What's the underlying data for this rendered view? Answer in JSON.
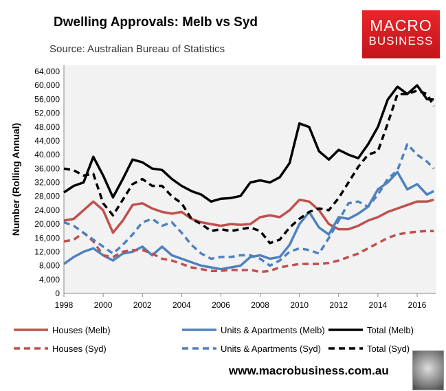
{
  "header": {
    "title": "Dwelling Approvals: Melb vs Syd",
    "source": "Source: Australian Bureau of Statistics"
  },
  "logo": {
    "line1": "MACRO",
    "line2": "BUSINESS"
  },
  "footer": {
    "url": "www.macrobusiness.com.au"
  },
  "chart_data": {
    "type": "line",
    "title": "Dwelling Approvals: Melb vs Syd",
    "xlabel": "",
    "ylabel": "Number (Rolling Annual)",
    "ylim": [
      0,
      64000
    ],
    "xlim": [
      1998,
      2017
    ],
    "yticks": [
      0,
      4000,
      8000,
      12000,
      16000,
      20000,
      24000,
      28000,
      32000,
      36000,
      40000,
      44000,
      48000,
      52000,
      56000,
      60000,
      64000
    ],
    "ytick_labels": [
      "0",
      "4,000",
      "8,000",
      "12,000",
      "16,000",
      "20,000",
      "24,000",
      "28,000",
      "32,000",
      "36,000",
      "40,000",
      "44,000",
      "48,000",
      "52,000",
      "56,000",
      "60,000",
      "64,000"
    ],
    "xticks": [
      1998,
      2000,
      2002,
      2004,
      2006,
      2008,
      2010,
      2012,
      2014,
      2016
    ],
    "xtick_labels": [
      "1998",
      "2000",
      "2002",
      "2004",
      "2006",
      "2008",
      "2010",
      "2012",
      "2014",
      "2016"
    ],
    "grid": false,
    "legend_placement": "bottom",
    "x": [
      1998,
      1998.5,
      1999,
      1999.5,
      2000,
      2000.5,
      2001,
      2001.5,
      2002,
      2002.5,
      2003,
      2003.5,
      2004,
      2004.5,
      2005,
      2005.5,
      2006,
      2006.5,
      2007,
      2007.5,
      2008,
      2008.5,
      2009,
      2009.5,
      2010,
      2010.5,
      2011,
      2011.5,
      2012,
      2012.5,
      2013,
      2013.5,
      2014,
      2014.5,
      2015,
      2015.5,
      2016,
      2016.5,
      2016.85
    ],
    "series": [
      {
        "name": "Houses (Melb)",
        "color": "#c0504d",
        "dash": false,
        "values": [
          21000,
          21500,
          24000,
          26500,
          24000,
          17500,
          21000,
          25500,
          26000,
          24500,
          23500,
          23000,
          23500,
          21500,
          20500,
          20000,
          19500,
          20000,
          19800,
          20000,
          22000,
          22500,
          22000,
          24000,
          27000,
          26500,
          24000,
          20000,
          18500,
          18500,
          19500,
          21000,
          22000,
          23500,
          24500,
          25500,
          26500,
          26500,
          27000
        ]
      },
      {
        "name": "Units & Apartments (Melb)",
        "color": "#4f81bd",
        "dash": false,
        "values": [
          8500,
          10500,
          12000,
          13000,
          11000,
          9500,
          11500,
          12000,
          13500,
          11000,
          13500,
          11000,
          10000,
          9000,
          8000,
          7500,
          7000,
          7500,
          8000,
          10500,
          11000,
          10000,
          10500,
          14000,
          20000,
          23500,
          19000,
          17000,
          22000,
          21500,
          23000,
          25000,
          30000,
          32000,
          35000,
          30000,
          31500,
          28500,
          29500
        ]
      },
      {
        "name": "Total (Melb)",
        "color": "#000000",
        "dash": false,
        "values": [
          29100,
          31000,
          32000,
          39400,
          34000,
          27700,
          33000,
          38600,
          37800,
          36000,
          35600,
          33000,
          31000,
          29500,
          28500,
          26500,
          27300,
          27500,
          28100,
          32000,
          32600,
          32000,
          33500,
          37600,
          49000,
          48000,
          41000,
          38600,
          41400,
          40000,
          39000,
          43000,
          48000,
          55900,
          59600,
          57500,
          60000,
          56000,
          55900
        ]
      },
      {
        "name": "Houses (Syd)",
        "color": "#c0504d",
        "dash": true,
        "values": [
          15000,
          15500,
          17500,
          15000,
          11000,
          10500,
          12000,
          12500,
          12500,
          11500,
          10000,
          9500,
          8500,
          7500,
          7000,
          6500,
          6500,
          6800,
          6700,
          6800,
          6200,
          6500,
          7500,
          8000,
          8500,
          8500,
          8500,
          8800,
          9500,
          10500,
          11500,
          13000,
          14500,
          16000,
          17000,
          17500,
          17800,
          18000,
          18000
        ]
      },
      {
        "name": "Units & Apartments (Syd)",
        "color": "#4f81bd",
        "dash": true,
        "values": [
          20500,
          19500,
          17500,
          15500,
          13500,
          11500,
          14000,
          17000,
          20500,
          21500,
          19500,
          20500,
          17500,
          14000,
          11500,
          10000,
          10500,
          10500,
          11000,
          11000,
          10000,
          8000,
          9500,
          12000,
          13000,
          12500,
          11500,
          16000,
          21000,
          26000,
          26500,
          25000,
          28500,
          33000,
          35500,
          43000,
          40000,
          38000,
          36000
        ]
      },
      {
        "name": "Total (Syd)",
        "color": "#000000",
        "dash": true,
        "values": [
          36000,
          35500,
          34000,
          34500,
          26000,
          22500,
          27000,
          31500,
          33000,
          31000,
          31000,
          28000,
          26000,
          21500,
          20000,
          18000,
          18500,
          18000,
          18500,
          19000,
          18000,
          14500,
          15500,
          19000,
          21500,
          23500,
          24500,
          24000,
          27500,
          32000,
          36500,
          40000,
          41000,
          49000,
          57500,
          57500,
          58500,
          57500,
          54000
        ]
      }
    ]
  }
}
